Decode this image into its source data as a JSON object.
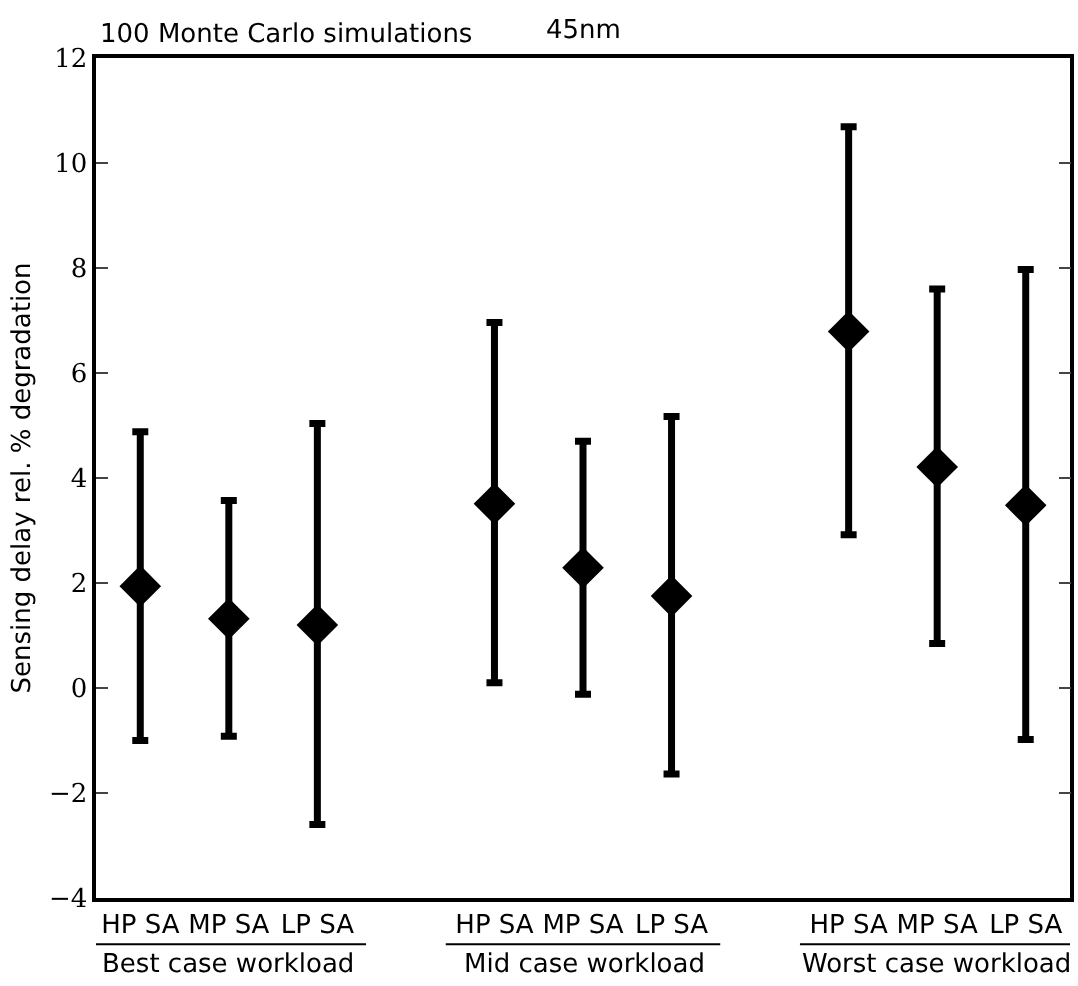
{
  "chart_data": {
    "type": "scatter",
    "title": "100 Monte Carlo simulations",
    "subtitle": "45nm",
    "ylabel": "Sensing delay rel. % degradation",
    "categories": [
      "HP SA",
      "MP SA",
      "LP SA",
      null,
      "HP SA",
      "MP SA",
      "LP SA",
      null,
      "HP SA",
      "MP SA",
      "LP SA"
    ],
    "values": [
      1.94,
      1.32,
      1.2,
      null,
      3.51,
      2.29,
      1.75,
      null,
      6.79,
      4.21,
      3.48
    ],
    "errors": [
      [
        -1.0,
        4.88
      ],
      [
        -0.92,
        3.57
      ],
      [
        -2.6,
        5.04
      ],
      null,
      [
        0.1,
        6.96
      ],
      [
        -0.12,
        4.7
      ],
      [
        -1.64,
        5.17
      ],
      null,
      [
        2.92,
        10.69
      ],
      [
        0.85,
        7.6
      ],
      [
        -0.98,
        7.97
      ]
    ],
    "color": "#000000",
    "marker": "diamond",
    "annotations": [
      "Best case workload",
      "Mid case workload",
      "Worst case workload"
    ],
    "ylim": [
      -4,
      12
    ],
    "yticks": [
      {
        "value": -4,
        "label": "−4"
      },
      {
        "value": -2,
        "label": "−2"
      },
      0,
      2,
      4,
      6,
      8,
      10,
      12
    ],
    "legend": false
  }
}
